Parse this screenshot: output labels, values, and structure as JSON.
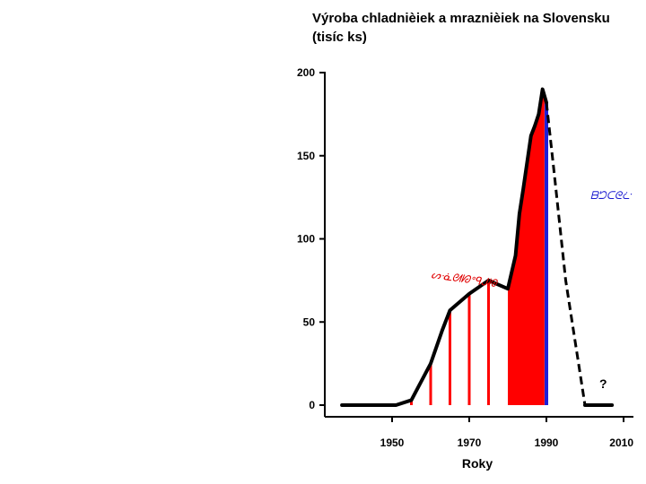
{
  "chart_data": {
    "type": "line",
    "title_line1": "Výroba chladnièiek a mraznièiek na Slovensku",
    "title_line2": "(tisíc ks)",
    "xlabel": "Roky",
    "ylabel": "",
    "xlim": [
      1950,
      2010
    ],
    "ylim": [
      0,
      200
    ],
    "x_ticks": [
      1950,
      1970,
      1990,
      2010
    ],
    "y_ticks": [
      0,
      50,
      100,
      150,
      200
    ],
    "grid": false,
    "legend": "none",
    "series": [
      {
        "style": "solid",
        "color": "#000000",
        "x": [
          1937,
          1951,
          1955,
          1960,
          1963,
          1965,
          1970,
          1975,
          1978,
          1980,
          1982,
          1983,
          1984,
          1986,
          1987,
          1988,
          1989,
          1990
        ],
        "y": [
          0,
          0,
          3,
          25,
          45,
          57,
          67,
          75,
          72,
          70,
          90,
          115,
          130,
          162,
          168,
          175,
          190,
          182
        ]
      },
      {
        "style": "dashed",
        "color": "#000000",
        "x": [
          1990,
          1992,
          1995,
          2000
        ],
        "y": [
          182,
          140,
          75,
          0
        ]
      },
      {
        "style": "solid",
        "color": "#000000",
        "x": [
          2000,
          2007
        ],
        "y": [
          0,
          0
        ]
      }
    ],
    "red_bars_x": [
      1955,
      1960,
      1965,
      1970,
      1975
    ],
    "red_area_from": 1980,
    "red_area_to": 1989.5,
    "blue_line_x": 1990,
    "annotations": {
      "red_label": "ᔕᓍᘛᘗᐤᑫᒍᘘ",
      "blue_label": "ᗷᘤᑕᘓᓩ",
      "question": "?"
    },
    "colors": {
      "line": "#000000",
      "fill": "#ff0000",
      "blue": "#1f1fd6"
    }
  }
}
